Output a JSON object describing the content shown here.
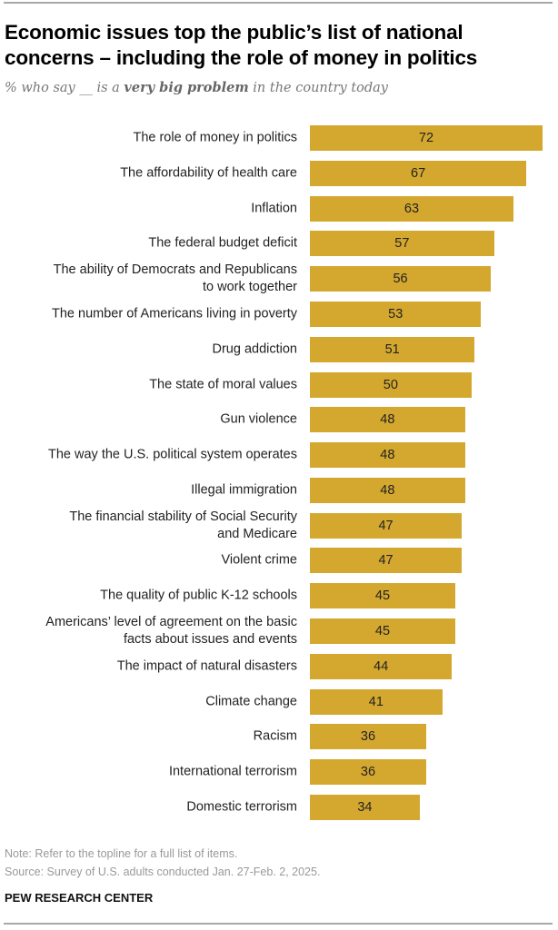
{
  "chart_data": {
    "type": "bar",
    "orientation": "horizontal",
    "title": "Economic issues top the public’s list of national concerns – including the role of money in politics",
    "subtitle_parts": [
      "% who say __ is a ",
      "very big problem",
      " in the country today"
    ],
    "categories": [
      "The role of money in politics",
      "The affordability of health care",
      "Inflation",
      "The federal budget deficit",
      "The ability of Democrats and Republicans\nto work together",
      "The number of Americans living in poverty",
      "Drug addiction",
      "The state of moral values",
      "Gun violence",
      "The way the U.S. political system operates",
      "Illegal immigration",
      "The financial stability of Social Security\nand Medicare",
      "Violent crime",
      "The quality of public K-12 schools",
      "Americans’ level of agreement on the basic\nfacts about issues and events",
      "The impact of natural disasters",
      "Climate change",
      "Racism",
      "International terrorism",
      "Domestic terrorism"
    ],
    "values": [
      72,
      67,
      63,
      57,
      56,
      53,
      51,
      50,
      48,
      48,
      48,
      47,
      47,
      45,
      45,
      44,
      41,
      36,
      36,
      34
    ],
    "xlim": [
      0,
      72
    ],
    "grid": false,
    "bar_color": "#d4a82f"
  },
  "footer": {
    "note": "Note: Refer to the topline for a full list of items.",
    "source": "Source: Survey of U.S. adults conducted Jan. 27-Feb. 2, 2025.",
    "brand": "PEW RESEARCH CENTER"
  }
}
